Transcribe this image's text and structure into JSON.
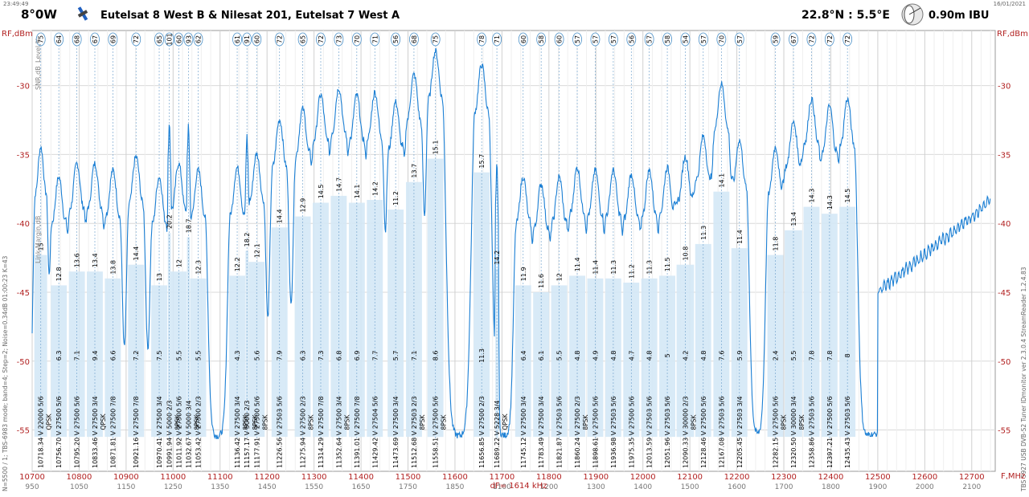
{
  "header": {
    "time_left": "23:49:49",
    "date_right": "16/01/2021",
    "position_label": "8°0W",
    "satellite_names": "Eutelsat 8 West B & Nilesat 201, Eutelsat 7 West A",
    "location": "22.8°N : 5.5°E",
    "dish": "0.90m IBU"
  },
  "side_text": {
    "left": "N=5500 / 1; TBS-6983 mode; band=4; Step=2; Noise=0.34dB   01:00:23   K=43",
    "right": "TBS 5927 USB DVB-S2 Tuner   IDmonitor  ver 2.3.0.4  StreamReader 1.2.4.83"
  },
  "legend_vertical": [
    "SNR,dB",
    "Level,%",
    "Link Margin,dB"
  ],
  "colors": {
    "trace": "#1b7fd4",
    "fill": "#d4e8f6",
    "axis_label": "#b22222",
    "grid": "#d9d9d9"
  },
  "chart_data": {
    "type": "area",
    "title": "8°0W  Eutelsat 8 West B & Nilesat 201, Eutelsat 7 West A",
    "ylabel_left": "RF,dBm",
    "ylabel_right": "RF,dBm",
    "xlabel": "F,MHz",
    "xlim": [
      10700,
      12750
    ],
    "ylim": [
      -58,
      -26
    ],
    "y_ticks": [
      -30,
      -35,
      -40,
      -45,
      -50,
      -55
    ],
    "x_ticks": [
      10700,
      10800,
      10900,
      11000,
      11100,
      11200,
      11300,
      11400,
      11500,
      11600,
      11700,
      11800,
      11900,
      12000,
      12100,
      12200,
      12300,
      12400,
      12500,
      12600,
      12700
    ],
    "lband_ticks": [
      {
        "f": 10700,
        "label": "950"
      },
      {
        "f": 10800,
        "label": "1050"
      },
      {
        "f": 10900,
        "label": "1150"
      },
      {
        "f": 11000,
        "label": "1250"
      },
      {
        "f": 11100,
        "label": "1350"
      },
      {
        "f": 11200,
        "label": "1450"
      },
      {
        "f": 11300,
        "label": "1550"
      },
      {
        "f": 11400,
        "label": "1650"
      },
      {
        "f": 11500,
        "label": "1750"
      },
      {
        "f": 11600,
        "label": "1850"
      },
      {
        "f": 11700,
        "label": "1100"
      },
      {
        "f": 11800,
        "label": "1200"
      },
      {
        "f": 11900,
        "label": "1300"
      },
      {
        "f": 12000,
        "label": "1400"
      },
      {
        "f": 12100,
        "label": "1500"
      },
      {
        "f": 12200,
        "label": "1600"
      },
      {
        "f": 12300,
        "label": "1700"
      },
      {
        "f": 12400,
        "label": "1800"
      },
      {
        "f": 12500,
        "label": "1900"
      },
      {
        "f": 12600,
        "label": "2000"
      },
      {
        "f": 12700,
        "label": "2100"
      }
    ],
    "df_label": "dF= 1614 kHz",
    "grid": true,
    "noise_floor_db": -55.5,
    "transponders": [
      {
        "freq": 10718.34,
        "sr": "22000",
        "fec": "5/6",
        "level": 75,
        "peak": -35.8,
        "snr": 15,
        "margin": null,
        "mod": "QPSK"
      },
      {
        "freq": 10756.7,
        "sr": "27500",
        "fec": "5/6",
        "level": 64,
        "peak": -38.0,
        "snr": 12.8,
        "margin": 6.3,
        "mod": ""
      },
      {
        "freq": 10795.2,
        "sr": "27500",
        "fec": "5/6",
        "level": 68,
        "peak": -37.0,
        "snr": 13.6,
        "margin": 7.1,
        "mod": ""
      },
      {
        "freq": 10833.46,
        "sr": "27500",
        "fec": "3/4",
        "level": 67,
        "peak": -37.0,
        "snr": 13.4,
        "margin": 9.4,
        "mod": "QPSK"
      },
      {
        "freq": 10871.81,
        "sr": "27500",
        "fec": "7/8",
        "level": 69,
        "peak": -37.5,
        "snr": 13.8,
        "margin": 6.6,
        "mod": ""
      },
      {
        "freq": 10921.16,
        "sr": "27500",
        "fec": "7/8",
        "level": 72,
        "peak": -36.5,
        "snr": 14.4,
        "margin": 7.2,
        "mod": ""
      },
      {
        "freq": 10970.41,
        "sr": "27500",
        "fec": "3/4",
        "level": 65,
        "peak": -38.0,
        "snr": 13,
        "margin": 7.5,
        "mod": ""
      },
      {
        "freq": 10991.94,
        "sr": "5000",
        "fec": "2/3",
        "level": 101,
        "peak": -34.2,
        "snr": 20.2,
        "margin": null,
        "mod": "8PSK"
      },
      {
        "freq": 11011.92,
        "sr": "27500",
        "fec": "5/6",
        "level": 60,
        "peak": -37.0,
        "snr": 12,
        "margin": 5.5,
        "mod": ""
      },
      {
        "freq": 11032.67,
        "sr": "5000",
        "fec": "3/4",
        "level": 93,
        "peak": -34.5,
        "snr": 18.7,
        "margin": null,
        "mod": "8PSK"
      },
      {
        "freq": 11053.42,
        "sr": "27500",
        "fec": "2/3",
        "level": 62,
        "peak": -37.5,
        "snr": 12.3,
        "margin": 5.5,
        "mod": ""
      },
      {
        "freq": 11136.42,
        "sr": "27500",
        "fec": "3/4",
        "level": 61,
        "peak": -37.3,
        "snr": 12.2,
        "margin": 4.3,
        "mod": "8PSK"
      },
      {
        "freq": 11157.17,
        "sr": "5000",
        "fec": "2/3",
        "level": 91,
        "peak": -35.5,
        "snr": 18.2,
        "margin": null,
        "mod": "8PSK"
      },
      {
        "freq": 11177.91,
        "sr": "27500",
        "fec": "5/6",
        "level": 60,
        "peak": -36.3,
        "snr": 12.1,
        "margin": 5.6,
        "mod": "8PSK"
      },
      {
        "freq": 11226.56,
        "sr": "27503",
        "fec": "5/6",
        "level": 72,
        "peak": -33.8,
        "snr": 14.4,
        "margin": 7.9,
        "mod": ""
      },
      {
        "freq": 11275.94,
        "sr": "27500",
        "fec": "2/3",
        "level": 65,
        "peak": -33.0,
        "snr": 12.9,
        "margin": 6.3,
        "mod": "8PSK"
      },
      {
        "freq": 11314.29,
        "sr": "27500",
        "fec": "7/8",
        "level": 72,
        "peak": -32.0,
        "snr": 14.5,
        "margin": 7.3,
        "mod": ""
      },
      {
        "freq": 11352.64,
        "sr": "27500",
        "fec": "3/4",
        "level": 73,
        "peak": -31.5,
        "snr": 14.7,
        "margin": 6.8,
        "mod": "8PSK"
      },
      {
        "freq": 11391.01,
        "sr": "27500",
        "fec": "7/8",
        "level": 70,
        "peak": -32.0,
        "snr": 14.1,
        "margin": 6.9,
        "mod": ""
      },
      {
        "freq": 11429.42,
        "sr": "27504",
        "fec": "5/6",
        "level": 71,
        "peak": -31.8,
        "snr": 14.2,
        "margin": 7.7,
        "mod": ""
      },
      {
        "freq": 11473.69,
        "sr": "27500",
        "fec": "3/4",
        "level": 56,
        "peak": -32.5,
        "snr": 11.2,
        "margin": 5.7,
        "mod": ""
      },
      {
        "freq": 11512.68,
        "sr": "27503",
        "fec": "2/3",
        "level": 68,
        "peak": -30.5,
        "snr": 13.7,
        "margin": 7.1,
        "mod": "8PSK"
      },
      {
        "freq": 11558.51,
        "sr": "27500",
        "fec": "5/6",
        "level": 75,
        "peak": -28.8,
        "snr": 15.1,
        "margin": 8.6,
        "mod": "8PSK"
      },
      {
        "freq": 11656.85,
        "sr": "27500",
        "fec": "2/3",
        "level": 78,
        "peak": -29.8,
        "snr": 15.7,
        "margin": 11.3,
        "mod": ""
      },
      {
        "freq": 11689.22,
        "sr": "5228",
        "fec": "3/4",
        "level": 71,
        "peak": -36.8,
        "snr": 14.2,
        "margin": null,
        "mod": "QPSK"
      },
      {
        "freq": 11745.12,
        "sr": "27500",
        "fec": "3/4",
        "level": 60,
        "peak": -38.0,
        "snr": 11.9,
        "margin": 6.4,
        "mod": ""
      },
      {
        "freq": 11783.49,
        "sr": "27500",
        "fec": "3/4",
        "level": 58,
        "peak": -38.5,
        "snr": 11.6,
        "margin": 6.1,
        "mod": ""
      },
      {
        "freq": 11821.87,
        "sr": "27503",
        "fec": "5/6",
        "level": 60,
        "peak": -38.0,
        "snr": 12,
        "margin": 5.5,
        "mod": ""
      },
      {
        "freq": 11860.24,
        "sr": "27500",
        "fec": "2/3",
        "level": 57,
        "peak": -37.3,
        "snr": 11.4,
        "margin": 4.8,
        "mod": "8PSK"
      },
      {
        "freq": 11898.61,
        "sr": "27500",
        "fec": "5/6",
        "level": 57,
        "peak": -37.5,
        "snr": 11.4,
        "margin": 4.9,
        "mod": ""
      },
      {
        "freq": 11936.98,
        "sr": "27503",
        "fec": "5/6",
        "level": 57,
        "peak": -37.5,
        "snr": 11.3,
        "margin": 4.8,
        "mod": ""
      },
      {
        "freq": 11975.35,
        "sr": "27500",
        "fec": "5/6",
        "level": 56,
        "peak": -37.8,
        "snr": 11.2,
        "margin": 4.7,
        "mod": ""
      },
      {
        "freq": 12013.59,
        "sr": "27503",
        "fec": "5/6",
        "level": 57,
        "peak": -37.5,
        "snr": 11.3,
        "margin": 4.8,
        "mod": ""
      },
      {
        "freq": 12051.96,
        "sr": "27503",
        "fec": "5/6",
        "level": 58,
        "peak": -37.3,
        "snr": 11.5,
        "margin": 5,
        "mod": ""
      },
      {
        "freq": 12090.33,
        "sr": "30000",
        "fec": "2/3",
        "level": 54,
        "peak": -36.5,
        "snr": 10.8,
        "margin": 4.2,
        "mod": "8PSK"
      },
      {
        "freq": 12128.46,
        "sr": "27500",
        "fec": "5/6",
        "level": 57,
        "peak": -35.0,
        "snr": 11.3,
        "margin": 4.8,
        "mod": ""
      },
      {
        "freq": 12167.08,
        "sr": "27503",
        "fec": "5/6",
        "level": 70,
        "peak": -31.2,
        "snr": 14.1,
        "margin": 7.6,
        "mod": ""
      },
      {
        "freq": 12205.45,
        "sr": "27503",
        "fec": "3/4",
        "level": 57,
        "peak": -35.3,
        "snr": 11.4,
        "margin": 5.9,
        "mod": ""
      },
      {
        "freq": 12282.15,
        "sr": "27500",
        "fec": "5/6",
        "level": 59,
        "peak": -35.8,
        "snr": 11.8,
        "margin": 2.4,
        "mod": "8PSK"
      },
      {
        "freq": 12320.5,
        "sr": "30000",
        "fec": "3/4",
        "level": 67,
        "peak": -34.0,
        "snr": 13.4,
        "margin": 5.5,
        "mod": "8PSK"
      },
      {
        "freq": 12358.86,
        "sr": "27503",
        "fec": "5/6",
        "level": 72,
        "peak": -32.3,
        "snr": 14.3,
        "margin": 7.8,
        "mod": ""
      },
      {
        "freq": 12397.21,
        "sr": "27500",
        "fec": "5/6",
        "level": 72,
        "peak": -32.8,
        "snr": 14.3,
        "margin": 7.8,
        "mod": ""
      },
      {
        "freq": 12435.43,
        "sr": "27503",
        "fec": "5/6",
        "level": 72,
        "peak": -32.3,
        "snr": 14.5,
        "margin": 8,
        "mod": ""
      }
    ]
  }
}
